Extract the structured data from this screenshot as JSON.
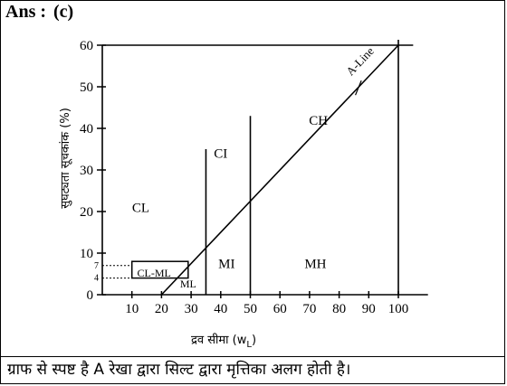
{
  "header": {
    "answer_label": "Ans :",
    "answer_value": "(c)"
  },
  "caption": "ग्राफ से स्पष्ट है A रेखा द्वारा सिल्ट द्वारा मृत्तिका अलग होती है।",
  "chart_data": {
    "type": "line",
    "title": "",
    "xlabel": "द्रव सीमा (wL)",
    "ylabel": "सुघट्यता सूचकांक (%)",
    "xlim": [
      0,
      110
    ],
    "ylim": [
      0,
      60
    ],
    "x_ticks": [
      10,
      20,
      30,
      40,
      50,
      60,
      70,
      80,
      90,
      100
    ],
    "y_ticks": [
      0,
      10,
      20,
      30,
      40,
      50,
      60
    ],
    "x_tick_labels": [
      "10",
      "20",
      "30",
      "40",
      "50",
      "60",
      "70",
      "80",
      "90",
      "100"
    ],
    "y_tick_labels": [
      "0",
      "10",
      "20",
      "30",
      "40",
      "50",
      "60"
    ],
    "y_extra_ticks": [
      {
        "y": 7,
        "label": "7"
      },
      {
        "y": 4,
        "label": "4"
      }
    ],
    "series": [
      {
        "name": "A-Line",
        "points": [
          [
            20,
            0
          ],
          [
            100,
            60
          ]
        ]
      }
    ],
    "boundaries": [
      {
        "x": 35,
        "y_range": [
          0,
          35
        ]
      },
      {
        "x": 50,
        "y_range": [
          0,
          43
        ]
      },
      {
        "x": 100,
        "y_range": [
          0,
          60
        ]
      }
    ],
    "reference_lines": [
      {
        "type": "horizontal",
        "y": 60,
        "x_range": [
          0,
          105
        ]
      },
      {
        "type": "horizontal-dashed",
        "y": 7,
        "x_range": [
          0,
          10
        ]
      },
      {
        "type": "horizontal-dashed",
        "y": 4,
        "x_range": [
          0,
          10
        ]
      }
    ],
    "regions": [
      {
        "label": "CL",
        "x": 13,
        "y": 21,
        "size": "normal"
      },
      {
        "label": "CI",
        "x": 40,
        "y": 34,
        "size": "normal"
      },
      {
        "label": "CH",
        "x": 73,
        "y": 42,
        "size": "normal"
      },
      {
        "label": "MI",
        "x": 42,
        "y": 7.5,
        "size": "normal"
      },
      {
        "label": "MH",
        "x": 72,
        "y": 7.5,
        "size": "normal"
      },
      {
        "label": "ML",
        "x": 29,
        "y": 2.8,
        "size": "small"
      },
      {
        "label": "CL-ML",
        "x": 17.5,
        "y": 5.4,
        "size": "small"
      }
    ],
    "cl_ml_box": {
      "x_range": [
        10,
        29
      ],
      "y_range": [
        4,
        8
      ]
    },
    "aline_label": {
      "text": "A-Line",
      "x": 88,
      "y": 55.5
    },
    "grid": false,
    "legend": "none"
  }
}
